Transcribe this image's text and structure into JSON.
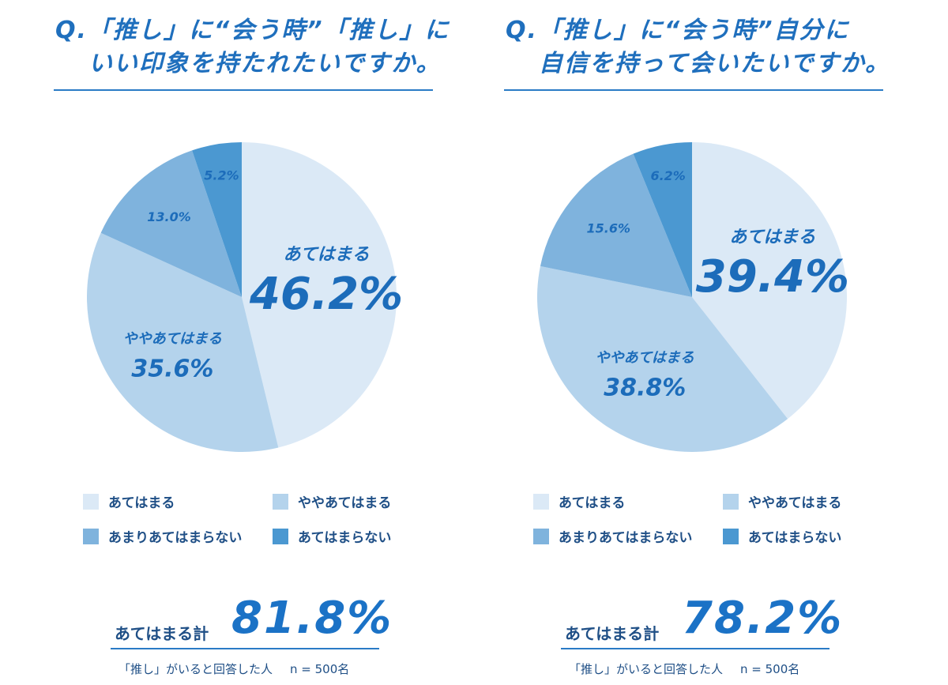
{
  "chart_data": [
    {
      "type": "pie",
      "title": "Q.「推し」に“会う時”「推し」にいい印象を持たれたいですか。",
      "title_lines": [
        "Q.「推し」に“会う時”「推し」に",
        "いい印象を持たれたいですか。"
      ],
      "slices": [
        {
          "label": "あてはまる",
          "value": 46.2,
          "value_text": "46.2%",
          "color": "#dbe9f6"
        },
        {
          "label": "ややあてはまる",
          "value": 35.6,
          "value_text": "35.6%",
          "color": "#b4d3ec"
        },
        {
          "label": "あまりあてはまらない",
          "value": 13.0,
          "value_text": "13.0%",
          "color": "#7fb3dd"
        },
        {
          "label": "あてはまらない",
          "value": 5.2,
          "value_text": "5.2%",
          "color": "#4b98d1"
        }
      ],
      "total_label": "あてはまる計",
      "total_value": "81.8%",
      "note_left": "「推し」がいると回答した人",
      "note_right": "n = 500名"
    },
    {
      "type": "pie",
      "title": "Q.「推し」に“会う時”自分に自信を持って会いたいですか。",
      "title_lines": [
        "Q.「推し」に“会う時”自分に",
        "自信を持って会いたいですか。"
      ],
      "slices": [
        {
          "label": "あてはまる",
          "value": 39.4,
          "value_text": "39.4%",
          "color": "#dbe9f6"
        },
        {
          "label": "ややあてはまる",
          "value": 38.8,
          "value_text": "38.8%",
          "color": "#b4d3ec"
        },
        {
          "label": "あまりあてはまらない",
          "value": 15.6,
          "value_text": "15.6%",
          "color": "#7fb3dd"
        },
        {
          "label": "あてはまらない",
          "value": 6.2,
          "value_text": "6.2%",
          "color": "#4b98d1"
        }
      ],
      "total_label": "あてはまる計",
      "total_value": "78.2%",
      "note_left": "「推し」がいると回答した人",
      "note_right": "n = 500名"
    }
  ]
}
